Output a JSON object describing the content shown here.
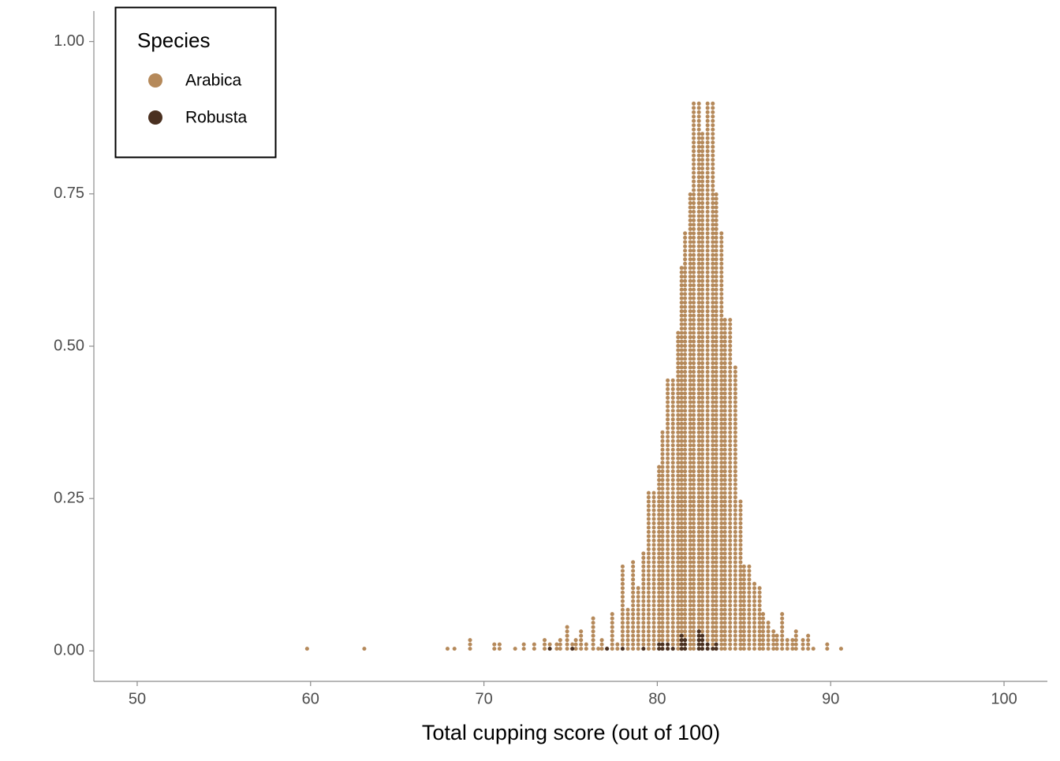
{
  "chart_data": {
    "type": "dotplot",
    "xlabel": "Total cupping score (out of 100)",
    "legend_title": "Species",
    "legend_position": "top-left",
    "dot_step": 0.0071,
    "xlim": [
      47.5,
      102.5
    ],
    "xticks": [
      50,
      60,
      70,
      80,
      90,
      100
    ],
    "ylim": [
      -0.05,
      1.05
    ],
    "yticks": [
      {
        "value": 0,
        "label": "0.00"
      },
      {
        "value": 0.25,
        "label": "0.25"
      },
      {
        "value": 0.5,
        "label": "0.50"
      },
      {
        "value": 0.75,
        "label": "0.75"
      },
      {
        "value": 1,
        "label": "1.00"
      }
    ],
    "series": [
      {
        "name": "Arabica",
        "color": "#b5895a",
        "x": [
          59.8,
          63.1,
          67.9,
          68.3,
          69.2,
          70.6,
          70.9,
          71.8,
          72.3,
          72.9,
          73.5,
          73.8,
          74.2,
          74.4,
          74.8,
          75.1,
          75.3,
          75.6,
          75.9,
          76.3,
          76.6,
          76.8,
          77.1,
          77.4,
          77.7,
          78.0,
          78.3,
          78.6,
          78.9,
          79.2,
          79.5,
          79.8,
          80.1,
          80.3,
          80.6,
          80.9,
          81.2,
          81.4,
          81.6,
          81.9,
          82.1,
          82.4,
          82.6,
          82.9,
          83.2,
          83.4,
          83.7,
          83.9,
          84.2,
          84.5,
          84.8,
          85.0,
          85.3,
          85.6,
          85.9,
          86.1,
          86.4,
          86.7,
          86.9,
          87.2,
          87.5,
          87.8,
          88.0,
          88.4,
          88.7,
          89.0,
          89.8,
          90.6
        ],
        "values": [
          0.007,
          0.007,
          0.007,
          0.007,
          0.021,
          0.014,
          0.014,
          0.007,
          0.014,
          0.014,
          0.021,
          0.014,
          0.014,
          0.021,
          0.043,
          0.014,
          0.021,
          0.036,
          0.014,
          0.057,
          0.007,
          0.021,
          0.007,
          0.064,
          0.014,
          0.142,
          0.071,
          0.149,
          0.107,
          0.163,
          0.263,
          0.263,
          0.305,
          0.362,
          0.447,
          0.447,
          0.526,
          0.63,
          0.69,
          0.75,
          0.9,
          0.9,
          0.85,
          0.9,
          0.9,
          0.75,
          0.69,
          0.546,
          0.546,
          0.47,
          0.249,
          0.142,
          0.142,
          0.114,
          0.107,
          0.064,
          0.05,
          0.036,
          0.028,
          0.064,
          0.021,
          0.021,
          0.036,
          0.021,
          0.028,
          0.007,
          0.014,
          0.007
        ]
      },
      {
        "name": "Robusta",
        "color": "#4a3020",
        "x": [
          73.8,
          75.1,
          77.1,
          78.0,
          79.2,
          80.1,
          80.3,
          80.6,
          80.9,
          81.4,
          81.6,
          82.4,
          82.6,
          82.9,
          83.2,
          83.4
        ],
        "values": [
          0.007,
          0.007,
          0.007,
          0.007,
          0.007,
          0.014,
          0.014,
          0.014,
          0.007,
          0.028,
          0.021,
          0.035,
          0.028,
          0.014,
          0.007,
          0.014
        ]
      }
    ]
  }
}
